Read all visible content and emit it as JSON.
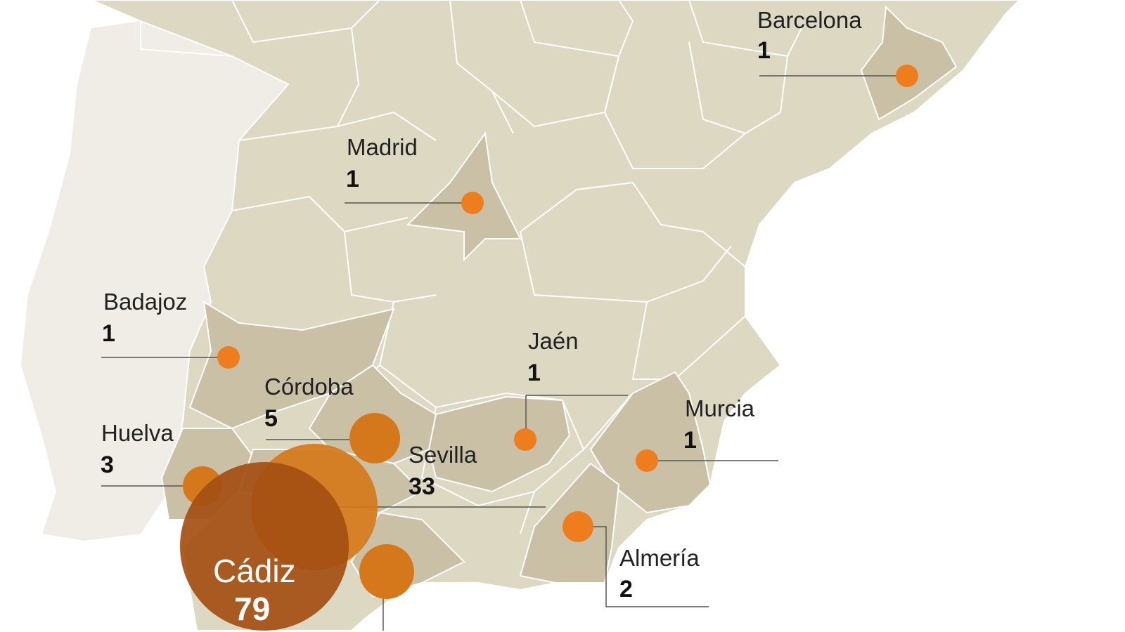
{
  "colors": {
    "land_spain": "#ddd8c2",
    "land_highlight": "#c9c0a5",
    "land_portugal": "#efede6",
    "border": "#ffffff",
    "bubble_small": "#ee7d1e",
    "bubble_mid": "#d5781b",
    "bubble_large": "#a44f12",
    "leader_line": "#555555"
  },
  "provinces": [
    {
      "name": "Barcelona",
      "value": "1"
    },
    {
      "name": "Madrid",
      "value": "1"
    },
    {
      "name": "Badajoz",
      "value": "1"
    },
    {
      "name": "Jaén",
      "value": "1"
    },
    {
      "name": "Córdoba",
      "value": "5"
    },
    {
      "name": "Murcia",
      "value": "1"
    },
    {
      "name": "Huelva",
      "value": "3"
    },
    {
      "name": "Sevilla",
      "value": "33"
    },
    {
      "name": "Almería",
      "value": "2"
    },
    {
      "name": "Cádiz",
      "value": "79"
    }
  ]
}
